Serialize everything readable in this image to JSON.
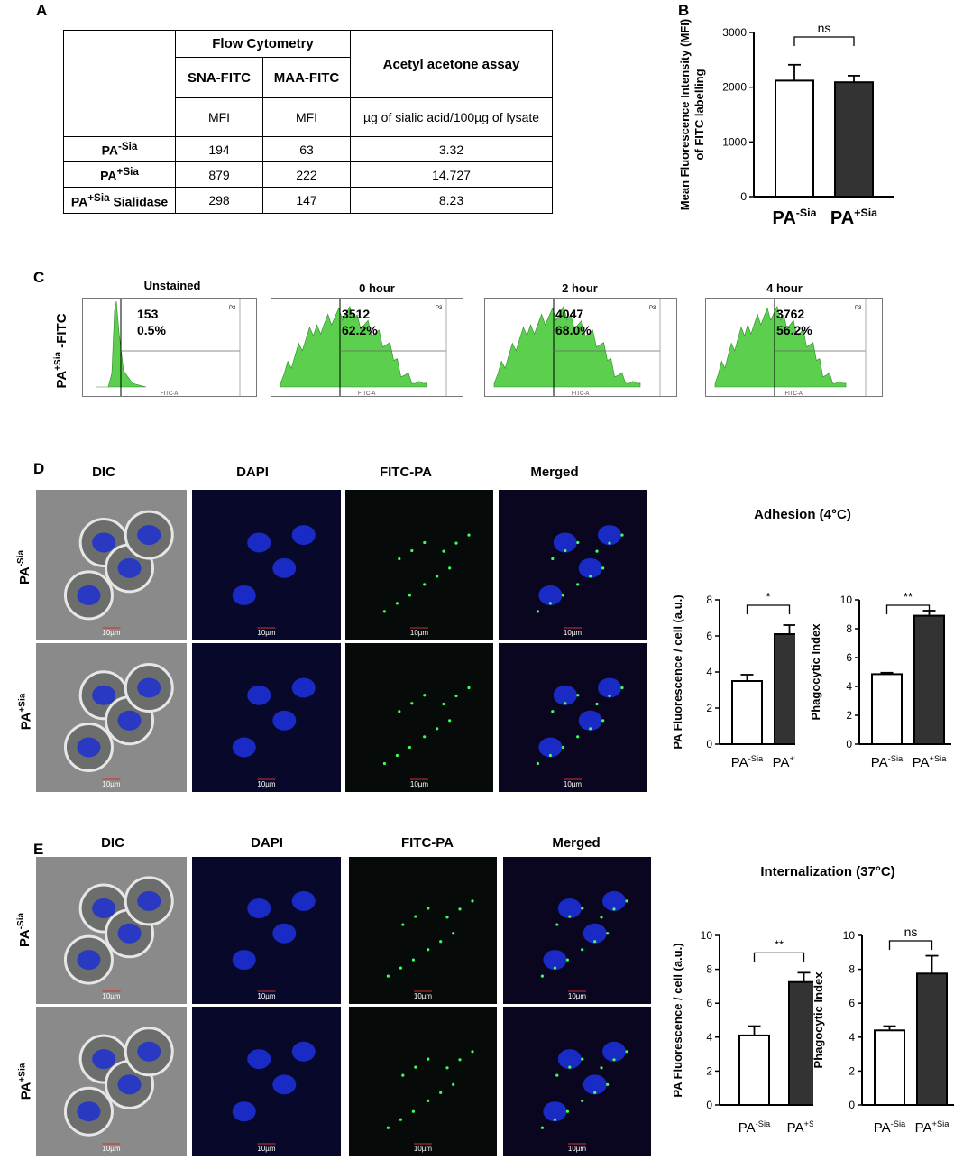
{
  "panel_labels": {
    "a": "A",
    "b": "B",
    "c": "C",
    "d": "D",
    "e": "E"
  },
  "table": {
    "group_header": "Flow Cytometry",
    "col_sna": "SNA-FITC",
    "col_maa": "MAA-FITC",
    "col_acetyl": "Acetyl acetone assay",
    "unit_sna": "MFI",
    "unit_maa": "MFI",
    "unit_acetyl": "µg of sialic acid/100µg  of lysate",
    "rows": [
      {
        "base": "PA",
        "sup": "-Sia",
        "suffix": "",
        "sna": "194",
        "maa": "63",
        "acetyl": "3.32"
      },
      {
        "base": "PA",
        "sup": "+Sia",
        "suffix": "",
        "sna": "879",
        "maa": "222",
        "acetyl": "14.727"
      },
      {
        "base": "PA",
        "sup": "+Sia",
        "suffix": " Sialidase",
        "sna": "298",
        "maa": "147",
        "acetyl": "8.23"
      }
    ]
  },
  "cond_labels": {
    "base": "PA",
    "minus": "-Sia",
    "plus": "+Sia"
  },
  "flow": {
    "ylabel_base": "PA",
    "ylabel_sup": "+Sia",
    "ylabel_suffix": " -FITC",
    "panels": [
      {
        "title": "Unstained",
        "count": "153",
        "pct": "0.5%",
        "gate": "P3",
        "peak": "narrow"
      },
      {
        "title": "0 hour",
        "count": "3512",
        "pct": "62.2%",
        "gate": "P3",
        "peak": "broad"
      },
      {
        "title": "2 hour",
        "count": "4047",
        "pct": "68.0%",
        "gate": "P3",
        "peak": "broad"
      },
      {
        "title": "4 hour",
        "count": "3762",
        "pct": "56.2%",
        "gate": "P3",
        "peak": "broad"
      }
    ],
    "axis_label": "FITC-A",
    "fill_color": "#5ccf4f"
  },
  "micro": {
    "columns": [
      "DIC",
      "DAPI",
      "FITC-PA",
      "Merged"
    ],
    "scale_bar": "10µm"
  },
  "adhesion_title": "Adhesion (4°C)",
  "internalization_title": "Internalization (37°C)",
  "chart_data": [
    {
      "id": "b",
      "type": "bar",
      "categories": [
        "PA-Sia",
        "PA+Sia"
      ],
      "values": [
        2120,
        2090
      ],
      "errors": [
        290,
        120
      ],
      "ylabel": "Mean Fluorescence Intensity (MFI) of FITC labelling",
      "ylim": [
        0,
        3000
      ],
      "yticks": [
        0,
        1000,
        2000,
        3000
      ],
      "significance": "ns",
      "colors": [
        "#ffffff",
        "#333333"
      ]
    },
    {
      "id": "d1",
      "type": "bar",
      "categories": [
        "PA-Sia",
        "PA+Sia"
      ],
      "values": [
        3.5,
        6.1
      ],
      "errors": [
        0.35,
        0.5
      ],
      "ylabel": "PA Fluorescence / cell (a.u.)",
      "ylim": [
        0,
        8
      ],
      "yticks": [
        0,
        2,
        4,
        6,
        8
      ],
      "significance": "*",
      "colors": [
        "#ffffff",
        "#333333"
      ]
    },
    {
      "id": "d2",
      "type": "bar",
      "categories": [
        "PA-Sia",
        "PA+Sia"
      ],
      "values": [
        4.85,
        8.9
      ],
      "errors": [
        0.1,
        0.35
      ],
      "ylabel": "Phagocytic Index",
      "ylim": [
        0,
        10
      ],
      "yticks": [
        0,
        2,
        4,
        6,
        8,
        10
      ],
      "significance": "**",
      "colors": [
        "#ffffff",
        "#333333"
      ]
    },
    {
      "id": "e1",
      "type": "bar",
      "categories": [
        "PA-Sia",
        "PA+Sia"
      ],
      "values": [
        4.1,
        7.25
      ],
      "errors": [
        0.55,
        0.55
      ],
      "ylabel": "PA Fluorescence / cell (a.u.)",
      "ylim": [
        0,
        10
      ],
      "yticks": [
        0,
        2,
        4,
        6,
        8,
        10
      ],
      "significance": "**",
      "colors": [
        "#ffffff",
        "#333333"
      ]
    },
    {
      "id": "e2",
      "type": "bar",
      "categories": [
        "PA-Sia",
        "PA+Sia"
      ],
      "values": [
        4.4,
        7.75
      ],
      "errors": [
        0.25,
        1.05
      ],
      "ylabel": "Phagocytic Index",
      "ylim": [
        0,
        10
      ],
      "yticks": [
        0,
        2,
        4,
        6,
        8,
        10
      ],
      "significance": "ns",
      "colors": [
        "#ffffff",
        "#333333"
      ]
    }
  ]
}
